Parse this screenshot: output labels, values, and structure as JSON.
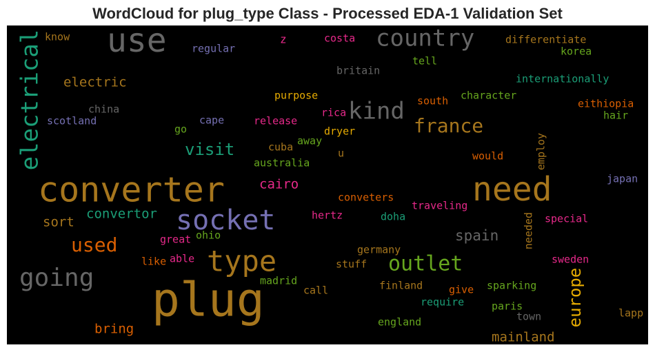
{
  "chart_data": {
    "type": "wordcloud",
    "title": "WordCloud for plug_type Class - Processed EDA-1 Validation Set",
    "words": [
      {
        "text": "use",
        "color": "#666666"
      },
      {
        "text": "country",
        "color": "#666666"
      },
      {
        "text": "electrical",
        "color": "#1b9e77"
      },
      {
        "text": "know",
        "color": "#a6761d"
      },
      {
        "text": "regular",
        "color": "#7570b3"
      },
      {
        "text": "z",
        "color": "#e7298a"
      },
      {
        "text": "costa",
        "color": "#e7298a"
      },
      {
        "text": "differentiate",
        "color": "#a6761d"
      },
      {
        "text": "korea",
        "color": "#66a61e"
      },
      {
        "text": "tell",
        "color": "#66a61e"
      },
      {
        "text": "britain",
        "color": "#666666"
      },
      {
        "text": "internationally",
        "color": "#1b9e77"
      },
      {
        "text": "electric",
        "color": "#a6761d"
      },
      {
        "text": "purpose",
        "color": "#e6ab02"
      },
      {
        "text": "character",
        "color": "#66a61e"
      },
      {
        "text": "south",
        "color": "#d95f02"
      },
      {
        "text": "kind",
        "color": "#666666"
      },
      {
        "text": "eithiopia",
        "color": "#d95f02"
      },
      {
        "text": "china",
        "color": "#666666"
      },
      {
        "text": "rica",
        "color": "#e7298a"
      },
      {
        "text": "hair",
        "color": "#66a61e"
      },
      {
        "text": "scotland",
        "color": "#7570b3"
      },
      {
        "text": "cape",
        "color": "#7570b3"
      },
      {
        "text": "release",
        "color": "#e7298a"
      },
      {
        "text": "france",
        "color": "#a6761d"
      },
      {
        "text": "go",
        "color": "#66a61e"
      },
      {
        "text": "dryer",
        "color": "#e6ab02"
      },
      {
        "text": "visit",
        "color": "#1b9e77"
      },
      {
        "text": "cuba",
        "color": "#a6761d"
      },
      {
        "text": "away",
        "color": "#66a61e"
      },
      {
        "text": "u",
        "color": "#a6761d"
      },
      {
        "text": "would",
        "color": "#d95f02"
      },
      {
        "text": "employ",
        "color": "#a6761d"
      },
      {
        "text": "australia",
        "color": "#66a61e"
      },
      {
        "text": "converter",
        "color": "#a6761d"
      },
      {
        "text": "need",
        "color": "#a6761d"
      },
      {
        "text": "japan",
        "color": "#7570b3"
      },
      {
        "text": "cairo",
        "color": "#e7298a"
      },
      {
        "text": "conveters",
        "color": "#d95f02"
      },
      {
        "text": "traveling",
        "color": "#e7298a"
      },
      {
        "text": "convertor",
        "color": "#1b9e77"
      },
      {
        "text": "socket",
        "color": "#7570b3"
      },
      {
        "text": "sort",
        "color": "#a6761d"
      },
      {
        "text": "hertz",
        "color": "#e7298a"
      },
      {
        "text": "doha",
        "color": "#1b9e77"
      },
      {
        "text": "needed",
        "color": "#a6761d"
      },
      {
        "text": "special",
        "color": "#e7298a"
      },
      {
        "text": "spain",
        "color": "#666666"
      },
      {
        "text": "great",
        "color": "#e7298a"
      },
      {
        "text": "ohio",
        "color": "#66a61e"
      },
      {
        "text": "used",
        "color": "#d95f02"
      },
      {
        "text": "type",
        "color": "#a6761d"
      },
      {
        "text": "germany",
        "color": "#a6761d"
      },
      {
        "text": "like",
        "color": "#d95f02"
      },
      {
        "text": "able",
        "color": "#e7298a"
      },
      {
        "text": "outlet",
        "color": "#66a61e"
      },
      {
        "text": "sweden",
        "color": "#e7298a"
      },
      {
        "text": "stuff",
        "color": "#a6761d"
      },
      {
        "text": "going",
        "color": "#666666"
      },
      {
        "text": "europe",
        "color": "#e6ab02"
      },
      {
        "text": "madrid",
        "color": "#66a61e"
      },
      {
        "text": "call",
        "color": "#a6761d"
      },
      {
        "text": "finland",
        "color": "#a6761d"
      },
      {
        "text": "give",
        "color": "#d95f02"
      },
      {
        "text": "sparking",
        "color": "#66a61e"
      },
      {
        "text": "plug",
        "color": "#a6761d"
      },
      {
        "text": "require",
        "color": "#1b9e77"
      },
      {
        "text": "paris",
        "color": "#66a61e"
      },
      {
        "text": "lapp",
        "color": "#a6761d"
      },
      {
        "text": "town",
        "color": "#666666"
      },
      {
        "text": "bring",
        "color": "#d95f02"
      },
      {
        "text": "england",
        "color": "#66a61e"
      },
      {
        "text": "mainland",
        "color": "#a6761d"
      }
    ]
  }
}
